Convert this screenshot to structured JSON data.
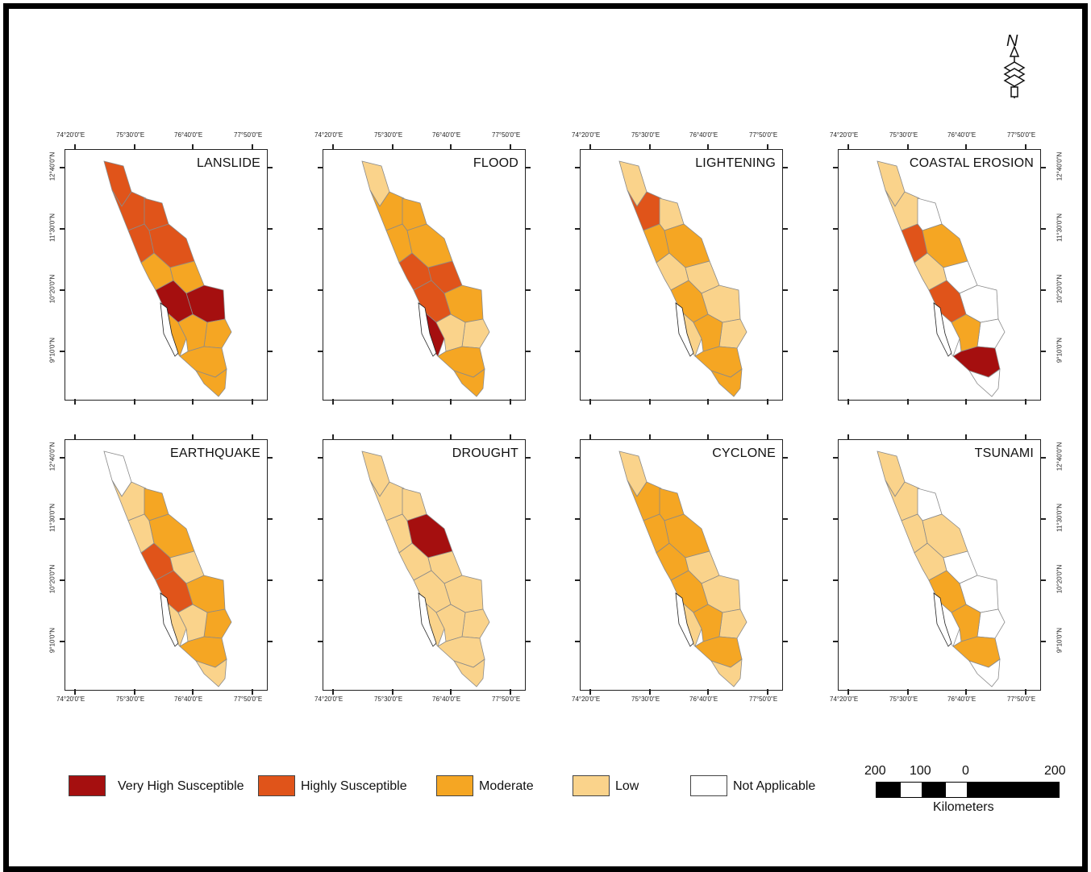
{
  "north_label": "N",
  "lon_labels": [
    "74°20'0\"E",
    "75°30'0\"E",
    "76°40'0\"E",
    "77°50'0\"E"
  ],
  "lat_labels": [
    "12°40'0\"N",
    "11°30'0\"N",
    "10°20'0\"N",
    "9°10'0\"N"
  ],
  "colors": {
    "very_high": "#a50f0f",
    "high": "#e0541a",
    "moderate": "#f5a623",
    "low": "#fad38b",
    "na": "#ffffff",
    "outline": "#8a8a8a"
  },
  "panels": [
    {
      "title": "LANSLIDE",
      "regions": [
        "high",
        "high",
        "high",
        "high",
        "high",
        "moderate",
        "moderate",
        "very_high",
        "moderate",
        "very_high",
        "moderate",
        "moderate",
        "moderate",
        "moderate"
      ]
    },
    {
      "title": "FLOOD",
      "regions": [
        "low",
        "moderate",
        "moderate",
        "moderate",
        "moderate",
        "high",
        "high",
        "moderate",
        "low",
        "high",
        "very_high",
        "low",
        "moderate",
        "moderate"
      ]
    },
    {
      "title": "LIGHTENING",
      "regions": [
        "low",
        "high",
        "low",
        "moderate",
        "moderate",
        "low",
        "low",
        "low",
        "low",
        "moderate",
        "low",
        "moderate",
        "moderate",
        "moderate"
      ]
    },
    {
      "title": "COASTAL EROSION",
      "regions": [
        "low",
        "low",
        "na",
        "high",
        "moderate",
        "low",
        "na",
        "na",
        "na",
        "high",
        "na",
        "moderate",
        "very_high",
        "na"
      ]
    },
    {
      "title": "EARTHQUAKE",
      "regions": [
        "na",
        "low",
        "moderate",
        "low",
        "moderate",
        "high",
        "low",
        "moderate",
        "moderate",
        "high",
        "low",
        "low",
        "moderate",
        "low"
      ]
    },
    {
      "title": "DROUGHT",
      "regions": [
        "low",
        "low",
        "low",
        "low",
        "very_high",
        "low",
        "low",
        "low",
        "low",
        "low",
        "low",
        "low",
        "low",
        "low"
      ]
    },
    {
      "title": "CYCLONE",
      "regions": [
        "low",
        "moderate",
        "moderate",
        "moderate",
        "moderate",
        "moderate",
        "low",
        "low",
        "low",
        "moderate",
        "low",
        "moderate",
        "moderate",
        "low"
      ]
    },
    {
      "title": "TSUNAMI",
      "regions": [
        "low",
        "low",
        "na",
        "low",
        "low",
        "low",
        "na",
        "na",
        "na",
        "moderate",
        "na",
        "moderate",
        "moderate",
        "na"
      ]
    }
  ],
  "legend": [
    {
      "label": "Very High Susceptible",
      "key": "very_high"
    },
    {
      "label": "Highly Susceptible",
      "key": "high"
    },
    {
      "label": "Moderate",
      "key": "moderate"
    },
    {
      "label": "Low",
      "key": "low"
    },
    {
      "label": "Not Applicable",
      "key": "na"
    }
  ],
  "scale_bar": {
    "labels": [
      "200",
      "100",
      "0",
      "200"
    ],
    "units": "Kilometers"
  }
}
